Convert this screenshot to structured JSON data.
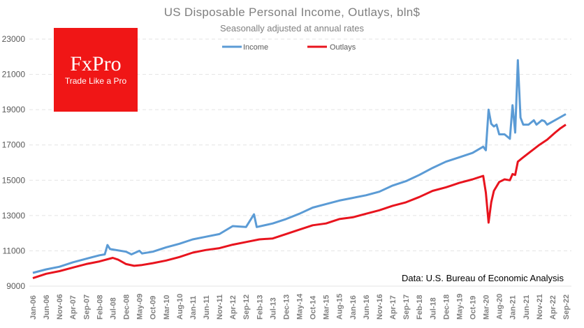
{
  "chart_data": {
    "type": "line",
    "title": "US Disposable  Personal  Income,  Outlays, bln$",
    "subtitle": "Seasonally adjusted at annual rates",
    "source": "Data: U.S. Bureau of Economic Analysis",
    "ylim": [
      9000,
      23000
    ],
    "yticks": [
      "9000",
      "11000",
      "13000",
      "15000",
      "17000",
      "19000",
      "21000",
      "23000"
    ],
    "xrange": [
      "2006-01",
      "2022-09"
    ],
    "xtick_labels": [
      "Jan-06",
      "Jun-06",
      "Nov-06",
      "Apr-07",
      "Sep-07",
      "Feb-08",
      "Jul-08",
      "Dec-08",
      "May-09",
      "Oct-09",
      "Mar-10",
      "Aug-10",
      "Jan-11",
      "Jun-11",
      "Nov-11",
      "Apr-12",
      "Sep-12",
      "Feb-13",
      "Jul-13",
      "Dec-13",
      "May-14",
      "Oct-14",
      "Mar-15",
      "Aug-15",
      "Jan-16",
      "Jun-16",
      "Nov-16",
      "Apr-17",
      "Sep-17",
      "Feb-18",
      "Jul-18",
      "Dec-18",
      "May-19",
      "Oct-19",
      "Mar-20",
      "Aug-20",
      "Jan-21",
      "Jun-21",
      "Nov-21",
      "Apr-22",
      "Sep-22"
    ],
    "grid": true,
    "legend_position": "top",
    "series": [
      {
        "name": "Income",
        "color": "#5b9bd5",
        "points": [
          [
            "2006-01",
            9750
          ],
          [
            "2006-06",
            9950
          ],
          [
            "2006-11",
            10100
          ],
          [
            "2007-04",
            10350
          ],
          [
            "2007-09",
            10550
          ],
          [
            "2008-02",
            10750
          ],
          [
            "2008-04",
            10800
          ],
          [
            "2008-05",
            11330
          ],
          [
            "2008-06",
            11100
          ],
          [
            "2008-12",
            10950
          ],
          [
            "2009-02",
            10800
          ],
          [
            "2009-05",
            11000
          ],
          [
            "2009-06",
            10850
          ],
          [
            "2009-10",
            10950
          ],
          [
            "2010-03",
            11200
          ],
          [
            "2010-08",
            11400
          ],
          [
            "2011-01",
            11650
          ],
          [
            "2011-06",
            11800
          ],
          [
            "2011-11",
            11950
          ],
          [
            "2012-04",
            12400
          ],
          [
            "2012-09",
            12350
          ],
          [
            "2012-12",
            13070
          ],
          [
            "2013-01",
            12350
          ],
          [
            "2013-07",
            12550
          ],
          [
            "2013-12",
            12800
          ],
          [
            "2014-05",
            13100
          ],
          [
            "2014-10",
            13450
          ],
          [
            "2015-03",
            13650
          ],
          [
            "2015-08",
            13850
          ],
          [
            "2016-01",
            14000
          ],
          [
            "2016-06",
            14150
          ],
          [
            "2016-11",
            14350
          ],
          [
            "2017-04",
            14700
          ],
          [
            "2017-09",
            14950
          ],
          [
            "2018-02",
            15300
          ],
          [
            "2018-07",
            15700
          ],
          [
            "2018-12",
            16050
          ],
          [
            "2019-05",
            16300
          ],
          [
            "2019-10",
            16550
          ],
          [
            "2020-02",
            16900
          ],
          [
            "2020-03",
            16700
          ],
          [
            "2020-04",
            19000
          ],
          [
            "2020-05",
            18200
          ],
          [
            "2020-06",
            18050
          ],
          [
            "2020-07",
            18150
          ],
          [
            "2020-08",
            17600
          ],
          [
            "2020-10",
            17600
          ],
          [
            "2020-12",
            17350
          ],
          [
            "2021-01",
            19250
          ],
          [
            "2021-02",
            17700
          ],
          [
            "2021-03",
            21800
          ],
          [
            "2021-04",
            18550
          ],
          [
            "2021-05",
            18150
          ],
          [
            "2021-07",
            18150
          ],
          [
            "2021-09",
            18400
          ],
          [
            "2021-10",
            18150
          ],
          [
            "2021-12",
            18400
          ],
          [
            "2022-01",
            18350
          ],
          [
            "2022-02",
            18150
          ],
          [
            "2022-09",
            18750
          ]
        ]
      },
      {
        "name": "Outlays",
        "color": "#e8141e",
        "points": [
          [
            "2006-01",
            9450
          ],
          [
            "2006-06",
            9700
          ],
          [
            "2006-11",
            9850
          ],
          [
            "2007-04",
            10050
          ],
          [
            "2007-09",
            10250
          ],
          [
            "2008-02",
            10400
          ],
          [
            "2008-07",
            10600
          ],
          [
            "2008-09",
            10500
          ],
          [
            "2008-12",
            10250
          ],
          [
            "2009-03",
            10150
          ],
          [
            "2009-06",
            10200
          ],
          [
            "2009-10",
            10300
          ],
          [
            "2010-03",
            10450
          ],
          [
            "2010-08",
            10650
          ],
          [
            "2011-01",
            10900
          ],
          [
            "2011-06",
            11050
          ],
          [
            "2011-11",
            11150
          ],
          [
            "2012-04",
            11350
          ],
          [
            "2012-09",
            11500
          ],
          [
            "2013-02",
            11650
          ],
          [
            "2013-07",
            11700
          ],
          [
            "2013-12",
            11950
          ],
          [
            "2014-05",
            12200
          ],
          [
            "2014-10",
            12450
          ],
          [
            "2015-03",
            12550
          ],
          [
            "2015-08",
            12800
          ],
          [
            "2016-01",
            12900
          ],
          [
            "2016-06",
            13100
          ],
          [
            "2016-11",
            13300
          ],
          [
            "2017-04",
            13550
          ],
          [
            "2017-09",
            13750
          ],
          [
            "2018-02",
            14050
          ],
          [
            "2018-07",
            14400
          ],
          [
            "2018-12",
            14600
          ],
          [
            "2019-02",
            14700
          ],
          [
            "2019-05",
            14850
          ],
          [
            "2019-10",
            15050
          ],
          [
            "2020-02",
            15250
          ],
          [
            "2020-03",
            14300
          ],
          [
            "2020-04",
            12600
          ],
          [
            "2020-05",
            13750
          ],
          [
            "2020-06",
            14400
          ],
          [
            "2020-08",
            14900
          ],
          [
            "2020-10",
            15050
          ],
          [
            "2020-12",
            15000
          ],
          [
            "2021-01",
            15350
          ],
          [
            "2021-02",
            15300
          ],
          [
            "2021-03",
            16050
          ],
          [
            "2021-05",
            16300
          ],
          [
            "2021-08",
            16650
          ],
          [
            "2021-11",
            17000
          ],
          [
            "2022-02",
            17300
          ],
          [
            "2022-05",
            17700
          ],
          [
            "2022-07",
            17950
          ],
          [
            "2022-09",
            18150
          ]
        ]
      }
    ]
  },
  "logo": {
    "brand": "FxPro",
    "tagline": "Trade Like a Pro",
    "color": "#f01616"
  }
}
